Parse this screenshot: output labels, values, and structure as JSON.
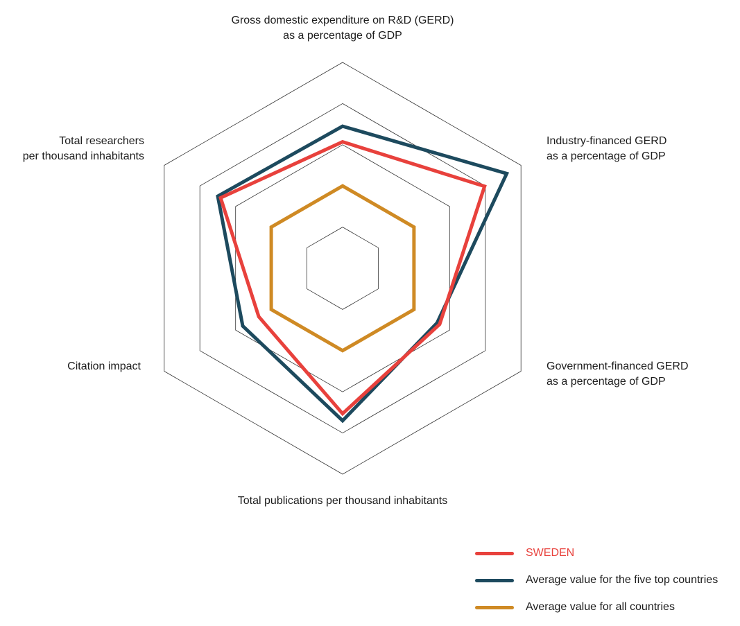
{
  "chart_data": {
    "type": "radar",
    "axes": [
      {
        "lines": [
          "Gross domestic expenditure on R&D (GERD)",
          "as a percentage of GDP"
        ]
      },
      {
        "lines": [
          "Industry-financed GERD",
          "as a percentage of GDP"
        ]
      },
      {
        "lines": [
          "Government-financed GERD",
          "as a percentage of GDP"
        ]
      },
      {
        "lines": [
          "Total publications per thousand inhabitants"
        ]
      },
      {
        "lines": [
          "Citation impact"
        ]
      },
      {
        "lines": [
          "Total researchers",
          "per thousand inhabitants"
        ]
      }
    ],
    "scale": {
      "min": 0,
      "max": 5,
      "rings": [
        1,
        2,
        3,
        4,
        5
      ]
    },
    "grid": true,
    "legend_position": "bottom-right",
    "series": [
      {
        "name": "SWEDEN",
        "color": "#e8413c",
        "label_color": "#e8413c",
        "values": [
          3.07,
          3.98,
          2.72,
          3.53,
          2.35,
          3.42
        ]
      },
      {
        "name": "Average value for the five top countries",
        "color": "#1d4a5e",
        "label_color": "#1c1c1c",
        "values": [
          3.45,
          4.6,
          2.65,
          3.7,
          2.8,
          3.5
        ]
      },
      {
        "name": "Average value for all countries",
        "color": "#cf8a24",
        "label_color": "#1c1c1c",
        "values": [
          2.0,
          2.0,
          2.0,
          2.0,
          2.0,
          2.0
        ]
      }
    ]
  }
}
